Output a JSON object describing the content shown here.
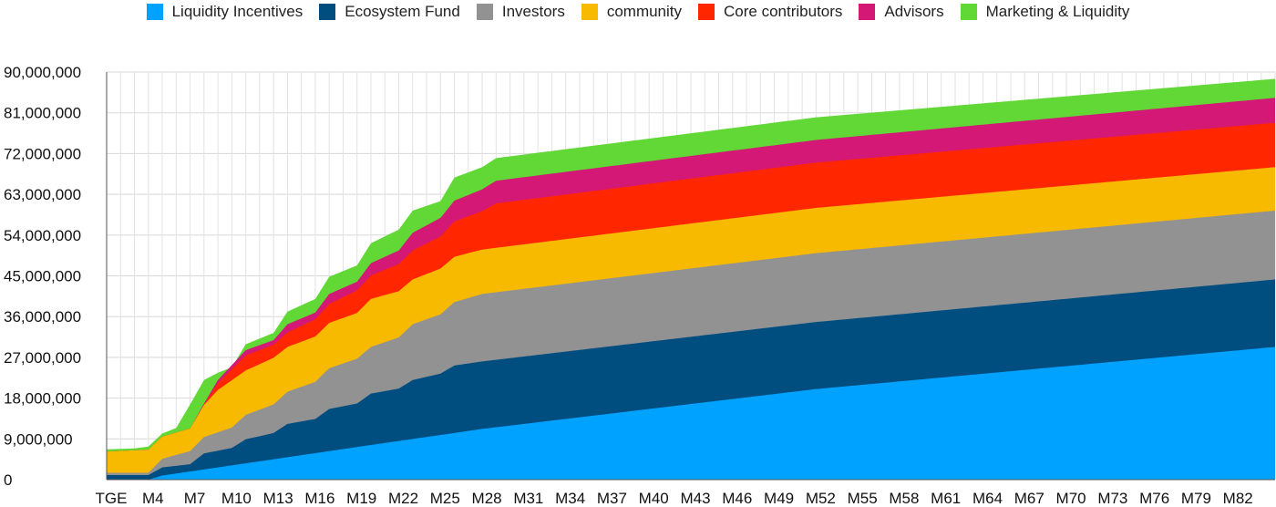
{
  "chart_data": {
    "type": "area",
    "stacked": true,
    "legend_position": "top",
    "grid": true,
    "ylim": [
      0,
      90000000
    ],
    "y_ticks": [
      0,
      9000000,
      18000000,
      27000000,
      36000000,
      45000000,
      54000000,
      63000000,
      72000000,
      81000000,
      90000000
    ],
    "y_tick_labels": [
      "0",
      "9,000,000",
      "18,000,000",
      "27,000,000",
      "36,000,000",
      "45,000,000",
      "54,000,000",
      "63,000,000",
      "72,000,000",
      "81,000,000",
      "90,000,000"
    ],
    "x_tick_labels": [
      "TGE",
      "M4",
      "M7",
      "M10",
      "M13",
      "M16",
      "M19",
      "M22",
      "M25",
      "M28",
      "M31",
      "M34",
      "M37",
      "M40",
      "M43",
      "M46",
      "M49",
      "M52",
      "M55",
      "M58",
      "M61",
      "M64",
      "M67",
      "M70",
      "M73",
      "M76",
      "M79",
      "M82"
    ],
    "months_total": 84,
    "series": [
      {
        "name": "Liquidity Incentives",
        "color": "#00a2ff",
        "points": [
          [
            0,
            0
          ],
          [
            3,
            0
          ],
          [
            4,
            900000
          ],
          [
            6,
            1800000
          ],
          [
            12,
            4500000
          ],
          [
            20,
            8100000
          ],
          [
            25,
            10300000
          ],
          [
            27,
            11200000
          ],
          [
            51,
            20000000
          ],
          [
            84,
            29300000
          ]
        ]
      },
      {
        "name": "Ecosystem Fund",
        "color": "#004d80",
        "points": [
          [
            0,
            1000000
          ],
          [
            3,
            1000000
          ],
          [
            4,
            2700000
          ],
          [
            6,
            3400000
          ],
          [
            7,
            5800000
          ],
          [
            9,
            7000000
          ],
          [
            10,
            8900000
          ],
          [
            12,
            10300000
          ],
          [
            13,
            12300000
          ],
          [
            15,
            13400000
          ],
          [
            16,
            15600000
          ],
          [
            18,
            16800000
          ],
          [
            19,
            19000000
          ],
          [
            21,
            20100000
          ],
          [
            22,
            22000000
          ],
          [
            24,
            23400000
          ],
          [
            25,
            25200000
          ],
          [
            27,
            26100000
          ],
          [
            51,
            34800000
          ],
          [
            84,
            44200000
          ]
        ]
      },
      {
        "name": "Investors",
        "color": "#929292",
        "points": [
          [
            0,
            1500000
          ],
          [
            3,
            1500000
          ],
          [
            4,
            4600000
          ],
          [
            6,
            6300000
          ],
          [
            7,
            9400000
          ],
          [
            9,
            11500000
          ],
          [
            10,
            14300000
          ],
          [
            12,
            16600000
          ],
          [
            13,
            19400000
          ],
          [
            15,
            21600000
          ],
          [
            16,
            24600000
          ],
          [
            18,
            26700000
          ],
          [
            19,
            29300000
          ],
          [
            21,
            31400000
          ],
          [
            22,
            34300000
          ],
          [
            24,
            36500000
          ],
          [
            25,
            39200000
          ],
          [
            27,
            41000000
          ],
          [
            51,
            50000000
          ],
          [
            84,
            59400000
          ]
        ]
      },
      {
        "name": "community",
        "color": "#f8ba00",
        "points": [
          [
            0,
            6200000
          ],
          [
            3,
            6600000
          ],
          [
            4,
            9500000
          ],
          [
            6,
            11300000
          ],
          [
            7,
            16500000
          ],
          [
            8,
            19800000
          ],
          [
            10,
            24100000
          ],
          [
            12,
            26900000
          ],
          [
            13,
            29300000
          ],
          [
            15,
            31600000
          ],
          [
            16,
            34600000
          ],
          [
            18,
            36800000
          ],
          [
            19,
            39900000
          ],
          [
            21,
            41600000
          ],
          [
            22,
            44200000
          ],
          [
            24,
            46600000
          ],
          [
            25,
            49200000
          ],
          [
            27,
            50800000
          ],
          [
            51,
            60000000
          ],
          [
            84,
            69000000
          ]
        ]
      },
      {
        "name": "Core contributors",
        "color": "#ff2600",
        "points": [
          [
            0,
            6200000
          ],
          [
            3,
            6600000
          ],
          [
            4,
            9500000
          ],
          [
            6,
            11300000
          ],
          [
            7,
            16600000
          ],
          [
            8,
            21300000
          ],
          [
            10,
            27400000
          ],
          [
            12,
            29800000
          ],
          [
            13,
            32500000
          ],
          [
            15,
            35400000
          ],
          [
            16,
            38800000
          ],
          [
            18,
            41800000
          ],
          [
            19,
            45100000
          ],
          [
            21,
            47600000
          ],
          [
            22,
            50600000
          ],
          [
            24,
            53700000
          ],
          [
            25,
            57000000
          ],
          [
            27,
            59300000
          ],
          [
            28,
            61000000
          ],
          [
            51,
            70000000
          ],
          [
            84,
            78800000
          ]
        ]
      },
      {
        "name": "Advisors",
        "color": "#d41876",
        "points": [
          [
            0,
            6200000
          ],
          [
            3,
            6600000
          ],
          [
            4,
            9500000
          ],
          [
            6,
            11300000
          ],
          [
            7,
            16800000
          ],
          [
            8,
            22000000
          ],
          [
            10,
            28600000
          ],
          [
            12,
            30800000
          ],
          [
            13,
            34300000
          ],
          [
            15,
            36900000
          ],
          [
            16,
            41000000
          ],
          [
            18,
            43700000
          ],
          [
            19,
            47800000
          ],
          [
            21,
            50600000
          ],
          [
            22,
            54500000
          ],
          [
            24,
            57800000
          ],
          [
            25,
            61600000
          ],
          [
            27,
            64100000
          ],
          [
            28,
            66000000
          ],
          [
            51,
            75000000
          ],
          [
            84,
            84300000
          ]
        ]
      },
      {
        "name": "Marketing & Liquidity",
        "color": "#61d836",
        "points": [
          [
            0,
            6700000
          ],
          [
            2,
            6900000
          ],
          [
            3,
            7300000
          ],
          [
            4,
            10200000
          ],
          [
            5,
            11400000
          ],
          [
            6,
            16600000
          ],
          [
            7,
            22000000
          ],
          [
            8,
            23600000
          ],
          [
            9,
            24800000
          ],
          [
            10,
            29900000
          ],
          [
            12,
            32400000
          ],
          [
            13,
            37100000
          ],
          [
            15,
            39900000
          ],
          [
            16,
            44800000
          ],
          [
            18,
            47300000
          ],
          [
            19,
            52200000
          ],
          [
            21,
            55200000
          ],
          [
            22,
            59400000
          ],
          [
            24,
            61500000
          ],
          [
            25,
            66700000
          ],
          [
            27,
            69000000
          ],
          [
            28,
            71000000
          ],
          [
            51,
            80000000
          ],
          [
            84,
            88500000
          ]
        ]
      }
    ]
  }
}
